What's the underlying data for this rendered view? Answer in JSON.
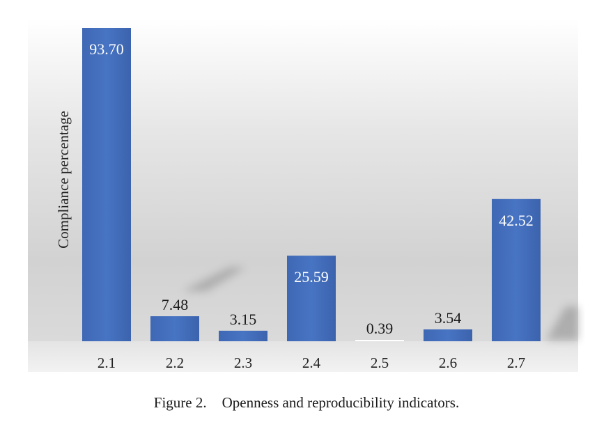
{
  "chart_data": {
    "type": "bar",
    "title": "",
    "xlabel": "",
    "ylabel": "Compliance percentage",
    "categories": [
      "2.1",
      "2.2",
      "2.3",
      "2.4",
      "2.5",
      "2.6",
      "2.7"
    ],
    "values": [
      93.7,
      7.48,
      3.15,
      25.59,
      0.39,
      3.54,
      42.52
    ],
    "data_labels": [
      "93.70",
      "7.48",
      "3.15",
      "25.59",
      "0.39",
      "3.54",
      "42.52"
    ],
    "ylim": [
      0,
      93.7
    ],
    "grid": false,
    "legend": "none",
    "bar_color": "#4472C4",
    "bar_color_dark": "#2F5597",
    "label_inside_color": "#ffffff",
    "label_outside_color": "#1a1a1a"
  },
  "caption": {
    "label": "Figure 2.",
    "text": "Openness and reproducibility indicators."
  }
}
